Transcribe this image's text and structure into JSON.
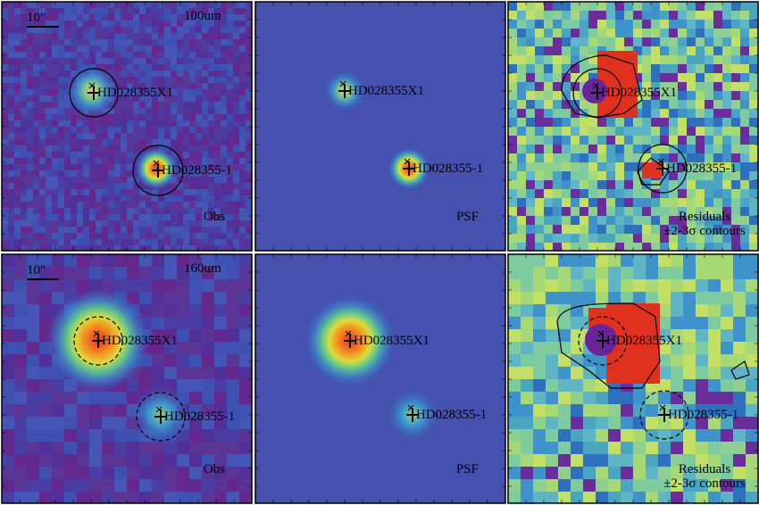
{
  "panels": [
    {
      "scale_bar": "10\"",
      "band": "100um",
      "sources": [
        "HD028355X1",
        "HD028355-1"
      ],
      "label": "Obs"
    },
    {
      "sources": [
        "HD028355X1",
        "HD028355-1"
      ],
      "label": "PSF"
    },
    {
      "sources": [
        "HD028355X1",
        "HD028355-1"
      ],
      "label": "Residuals",
      "note": "±2-3σ contours"
    },
    {
      "scale_bar": "10\"",
      "band": "160um",
      "sources": [
        "HD028355X1",
        "HD028355-1"
      ],
      "label": "Obs"
    },
    {
      "sources": [
        "HD028355X1",
        "HD028355-1"
      ],
      "label": "PSF"
    },
    {
      "sources": [
        "HD028355X1",
        "HD028355-1"
      ],
      "label": "Residuals",
      "note": "±2-3σ contours"
    }
  ]
}
